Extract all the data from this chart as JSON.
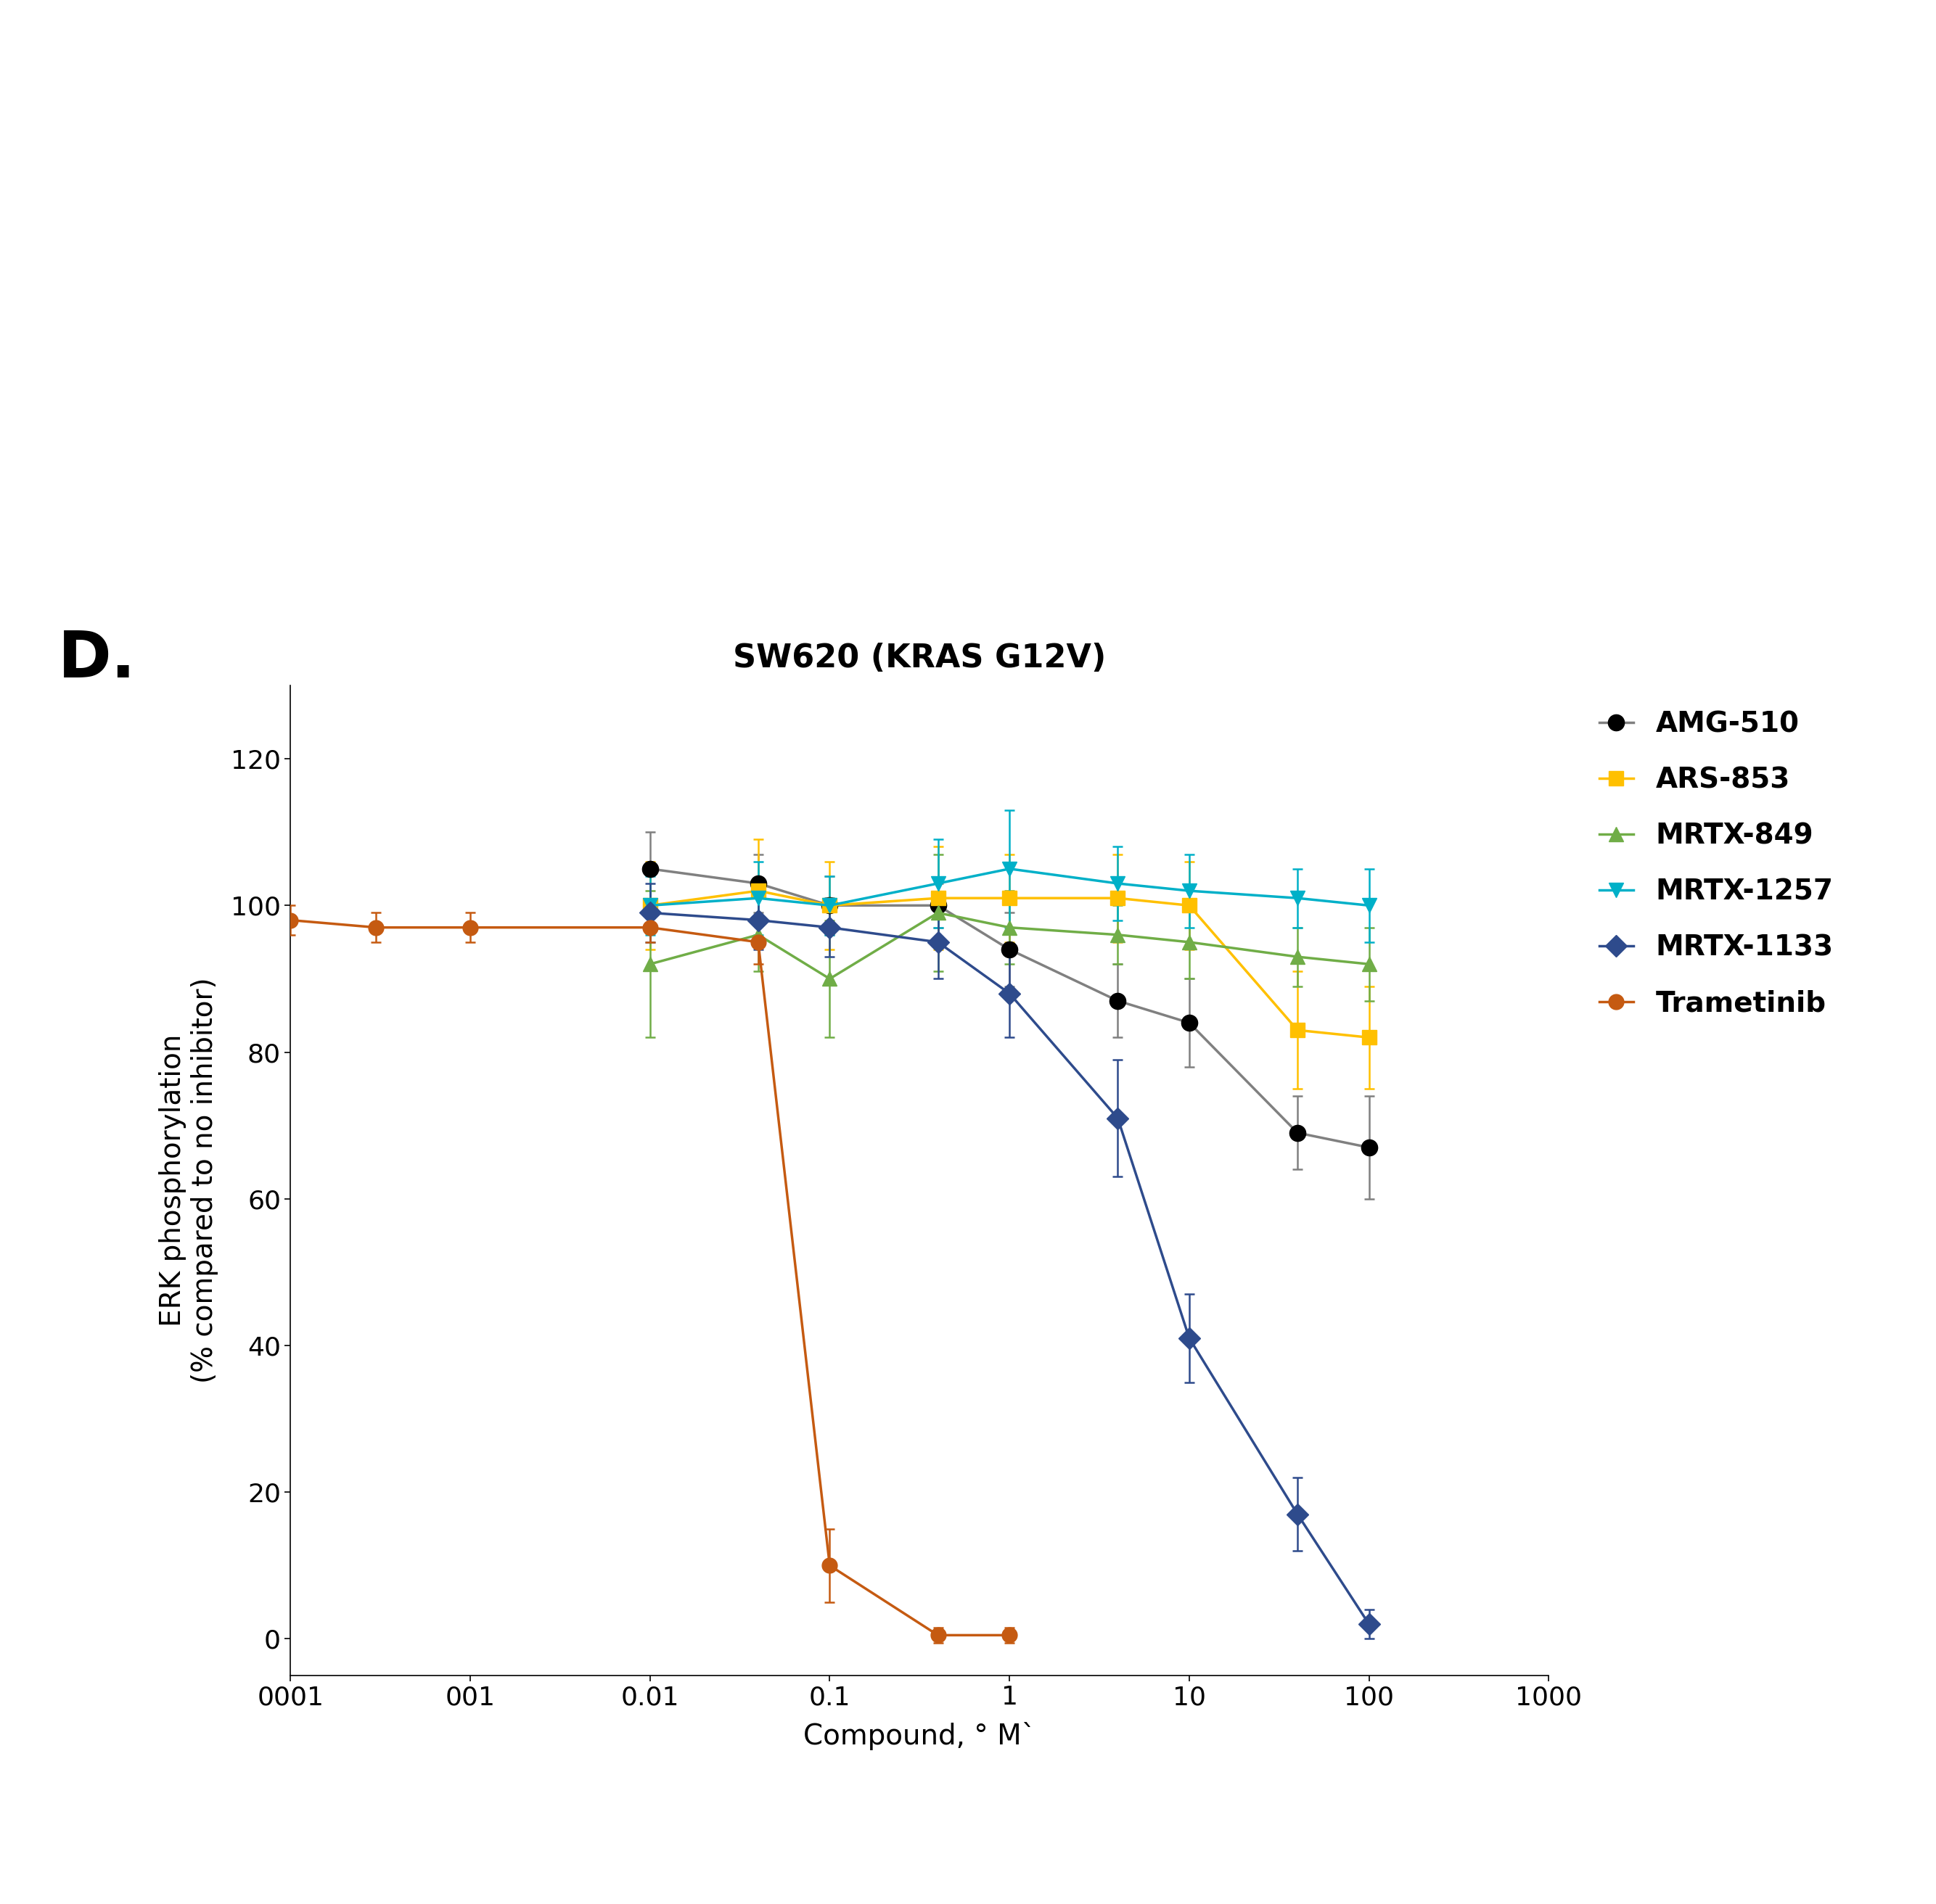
{
  "title": "SW620 (KRAS G12V)",
  "panel_label": "D.",
  "xlabel": "Compound, ° M`",
  "ylabel": "ERK phosphorylation\n(% compared to no inhibitor)",
  "ylim": [
    -5,
    130
  ],
  "yticks": [
    0,
    20,
    40,
    60,
    80,
    100,
    120
  ],
  "xtick_labels": [
    "0001",
    "001",
    "0.01",
    "0.1",
    "1",
    "10",
    "100",
    "1000"
  ],
  "xtick_values": [
    0.0001,
    0.001,
    0.01,
    0.1,
    1,
    10,
    100,
    1000
  ],
  "series": {
    "AMG-510": {
      "color": "#808080",
      "marker": "o",
      "marker_color": "#000000",
      "linewidth": 2.5,
      "markersize": 16,
      "x": [
        0.01,
        0.04,
        0.1,
        0.4,
        1,
        4,
        10,
        40,
        100
      ],
      "y": [
        105,
        103,
        100,
        100,
        94,
        87,
        84,
        69,
        67
      ],
      "yerr": [
        5,
        4,
        4,
        3,
        5,
        5,
        6,
        5,
        7
      ]
    },
    "ARS-853": {
      "color": "#FFC000",
      "marker": "s",
      "marker_color": "#FFC000",
      "linewidth": 2.5,
      "markersize": 15,
      "x": [
        0.01,
        0.04,
        0.1,
        0.4,
        1,
        4,
        10,
        40,
        100
      ],
      "y": [
        100,
        102,
        100,
        101,
        101,
        101,
        100,
        83,
        82
      ],
      "yerr": [
        6,
        7,
        6,
        7,
        6,
        6,
        6,
        8,
        7
      ]
    },
    "MRTX-849": {
      "color": "#70AD47",
      "marker": "^",
      "marker_color": "#70AD47",
      "linewidth": 2.5,
      "markersize": 15,
      "x": [
        0.01,
        0.04,
        0.1,
        0.4,
        1,
        4,
        10,
        40,
        100
      ],
      "y": [
        92,
        96,
        90,
        99,
        97,
        96,
        95,
        93,
        92
      ],
      "yerr": [
        10,
        5,
        8,
        8,
        5,
        4,
        5,
        4,
        5
      ]
    },
    "MRTX-1257": {
      "color": "#00B0C8",
      "marker": "v",
      "marker_color": "#00B0C8",
      "linewidth": 2.5,
      "markersize": 15,
      "x": [
        0.01,
        0.04,
        0.1,
        0.4,
        1,
        4,
        10,
        40,
        100
      ],
      "y": [
        100,
        101,
        100,
        103,
        105,
        103,
        102,
        101,
        100
      ],
      "yerr": [
        4,
        5,
        4,
        6,
        8,
        5,
        5,
        4,
        5
      ]
    },
    "MRTX-1133": {
      "color": "#2E4B8C",
      "marker": "D",
      "marker_color": "#2E4B8C",
      "linewidth": 2.5,
      "markersize": 15,
      "x": [
        0.01,
        0.04,
        0.1,
        0.4,
        1,
        4,
        10,
        40,
        100
      ],
      "y": [
        99,
        98,
        97,
        95,
        88,
        71,
        41,
        17,
        2
      ],
      "yerr": [
        4,
        4,
        4,
        5,
        6,
        8,
        6,
        5,
        2
      ]
    },
    "Trametinib": {
      "color": "#C55A11",
      "marker": "o",
      "marker_color": "#C55A11",
      "linewidth": 2.5,
      "markersize": 15,
      "x": [
        0.0001,
        0.0003,
        0.001,
        0.01,
        0.04,
        0.1,
        0.4,
        1
      ],
      "y": [
        98,
        97,
        97,
        97,
        95,
        10,
        0.5,
        0.5
      ],
      "yerr": [
        2,
        2,
        2,
        2,
        3,
        5,
        1,
        1
      ]
    }
  },
  "legend_order": [
    "AMG-510",
    "ARS-853",
    "MRTX-849",
    "MRTX-1257",
    "MRTX-1133",
    "Trametinib"
  ],
  "background_color": "#ffffff",
  "title_fontsize": 32,
  "label_fontsize": 28,
  "tick_fontsize": 26,
  "legend_fontsize": 28,
  "panel_label_fontsize": 64
}
